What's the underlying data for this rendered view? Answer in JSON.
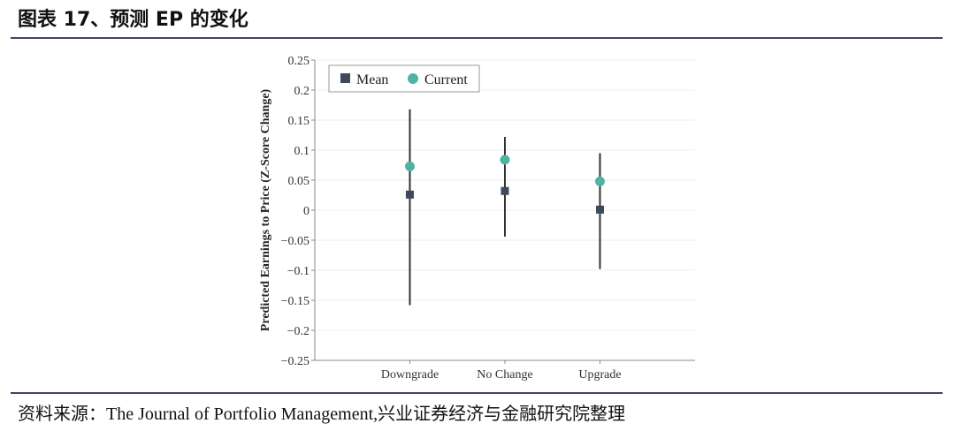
{
  "header": {
    "title": "图表 17、预测 EP 的变化"
  },
  "footer": {
    "source_label": "资料来源：",
    "source_text": "The Journal of Portfolio Management,兴业证券经济与金融研究院整理"
  },
  "colors": {
    "rule": "#3d4470",
    "mean": "#3e4a5c",
    "current": "#4fb3a3",
    "whisker": "#333333",
    "axis": "#8a8a8a",
    "grid": "#ededed"
  },
  "chart_data": {
    "type": "scatter",
    "title": "",
    "xlabel": "",
    "ylabel": "Predicted Earnings to Price (Z-Score Change)",
    "categories": [
      "Downgrade",
      "No Change",
      "Upgrade"
    ],
    "ylim": [
      -0.25,
      0.25
    ],
    "yticks": [
      0.25,
      0.2,
      0.15,
      0.1,
      0.05,
      0,
      -0.05,
      -0.1,
      -0.15,
      -0.2,
      -0.25
    ],
    "ytick_labels": [
      "0.25",
      "0.2",
      "0.15",
      "0.1",
      "0.05",
      "0",
      "−0.05",
      "−0.1",
      "−0.15",
      "−0.2",
      "−0.25"
    ],
    "grid": true,
    "legend": {
      "placement": "top-left",
      "entries": [
        "Mean",
        "Current"
      ]
    },
    "series": [
      {
        "name": "Mean",
        "marker": "square",
        "values": [
          0.026,
          0.032,
          0.001
        ]
      },
      {
        "name": "Current",
        "marker": "circle",
        "values": [
          0.073,
          0.084,
          0.048
        ]
      }
    ],
    "ranges": [
      {
        "category": "Downgrade",
        "low": -0.158,
        "high": 0.168
      },
      {
        "category": "No Change",
        "low": -0.044,
        "high": 0.122
      },
      {
        "category": "Upgrade",
        "low": -0.098,
        "high": 0.095
      }
    ]
  }
}
